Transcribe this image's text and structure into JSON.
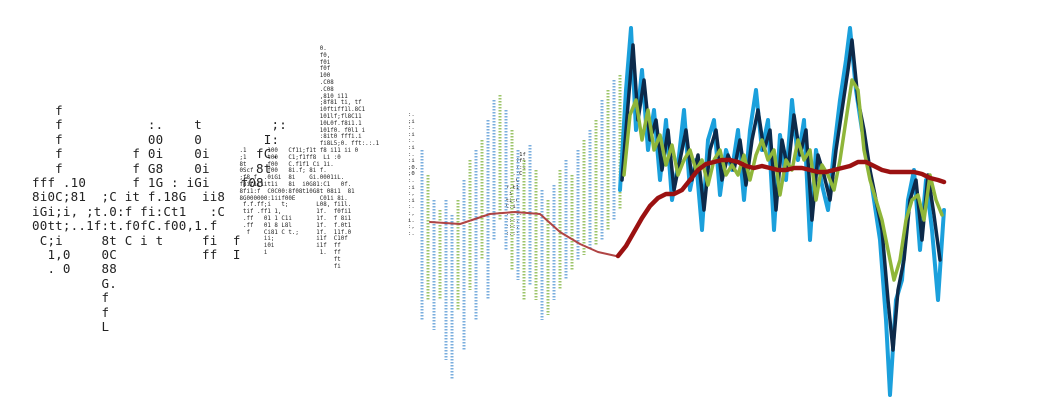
{
  "artwork": {
    "text_blocks": [
      {
        "id": "block-1",
        "lines": [
          "   f",
          "   f           :.    t         ;:",
          "   f           00    0        I:",
          "   f         f 0i    0i      fC.",
          "   f         f G8    0i      8t",
          "fff .10      f 1G : iGi    f08",
          "8i0C;81  ;C it f.18G  ii8",
          "iGi;i, ;t.0:f fi:Ct1   :C",
          "00tt;..1f:t.f0fC.f00,1.f",
          " C;i     8t C i t     fi  f",
          "  1,0    0C           ff  I",
          "  . 0    88",
          "         G.",
          "         f",
          "         f",
          "         L"
        ]
      },
      {
        "id": "block-2",
        "lines": [
          "                        0.",
          "                        f0,",
          "                        f0i",
          "                        f0f",
          "                        100",
          "                        .C08",
          "                        .C08",
          "                        ,810 i11",
          "                        ;8f81 ti, tf",
          "                        i0ftiff1l.8C1",
          "                        101lf;fl8C11",
          "                        10L0f.f8i1.1",
          "                        101f0. f0l1 i",
          "                        :8it0 fffi.i",
          "                        fi8L5;0. fft:.:.1",
          " .1      100   Cf1i;f1t f8 i11 ii 0",
          " ;1      t00   C1;f1ff8  Li :0",
          " 8t      f00   C.f1f1 Ci 1i.",
          " 0Scf    f00   8i.f; 8i f.",
          " ;f8,f  .0iGi  8i    Gi.0001iL.",
          " f8if1i1it1i   8i  i0G81:C1   0f.",
          " 8fi1:f  C0C00:8f08t10G8t 08i1  81",
          " 8G000000:1iif00E       C01i 8i.",
          "  f.f.ff;i   t;        L08, fi1l.",
          "  tif .ff1 1,          1f.  f0fi1",
          "  .ff   01 1 C1i       1f.  f 8i1",
          "  .ff   01 8 L8l       1f.  f.0t1",
          "   f    Ci81 C t.;     1f.  11f.0",
          "        ii;            i1f  C10f",
          "        i0i            i1f  ff",
          "        i               1.  ff",
          "                            ft",
          "                            fi"
        ]
      },
      {
        "id": "block-3",
        "lines": [
          ":.",
          ";i",
          ":.",
          ":i",
          ":.",
          ":i",
          ":.                               1f",
          ":i                              ffl",
          ";0.                             i:t",
          ";0                             .:C",
          ":.                             .C",
          ":i                           f.t1",
          ":,                           .i",
          ":i                           ti:C",
          ":.                           C:i",
          ":,                           ::::.",
          "i.                           ::::",
          ":,                           :::;",
          ":.                           ::::"
        ]
      }
    ],
    "series_colors": {
      "light_blue": "#1ba0dc",
      "navy": "#0d2a4a",
      "green": "#8fb63a",
      "dark_red": "#9b1111"
    },
    "speckle_colors": {
      "blue": "#7aaede",
      "green": "#9cc46a",
      "red": "#b04444"
    }
  }
}
